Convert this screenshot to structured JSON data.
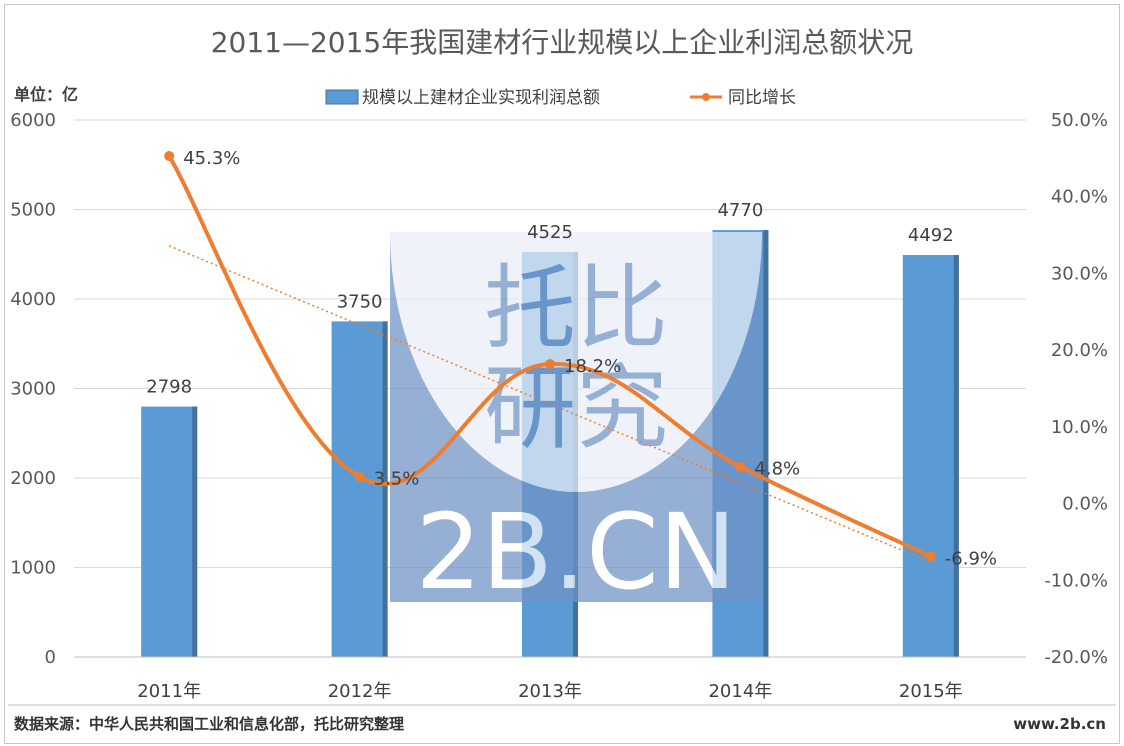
{
  "chart_data": {
    "type": "bar",
    "title": "2011—2015年我国建材行业规模以上企业利润总额状况",
    "unit_label": "单位：亿",
    "categories": [
      "2011年",
      "2012年",
      "2013年",
      "2014年",
      "2015年"
    ],
    "series": [
      {
        "name": "规模以上建材企业实现利润总额",
        "type": "bar",
        "axis": "left",
        "values": [
          2798,
          3750,
          4525,
          4770,
          4492
        ],
        "labels": [
          "2798",
          "3750",
          "4525",
          "4770",
          "4492"
        ]
      },
      {
        "name": "同比增长",
        "type": "line",
        "axis": "right",
        "values": [
          45.3,
          3.5,
          18.2,
          4.8,
          -6.9
        ],
        "labels": [
          "45.3%",
          "3.5%",
          "18.2%",
          "4.8%",
          "-6.9%"
        ]
      }
    ],
    "y_left": {
      "min": 0,
      "max": 6000,
      "ticks": [
        "0",
        "1000",
        "2000",
        "3000",
        "4000",
        "5000",
        "6000"
      ]
    },
    "y_right": {
      "min": -20,
      "max": 50,
      "ticks": [
        "-20.0%",
        "-10.0%",
        "0.0%",
        "10.0%",
        "20.0%",
        "30.0%",
        "40.0%",
        "50.0%"
      ]
    },
    "trendline": true,
    "grid": true,
    "legend": "top",
    "colors": {
      "bar": "#5b9bd5",
      "bar_dark": "#41719c",
      "line": "#ed7d31",
      "grid": "#d9d9d9",
      "watermark": "#6f93c6"
    }
  },
  "footer": {
    "source": "数据来源：中华人民共和国工业和信息化部，托比研究整理",
    "site": "www.2b.cn"
  },
  "watermark": {
    "line1": "托比",
    "line2": "研究",
    "line3": "2B.CN"
  }
}
